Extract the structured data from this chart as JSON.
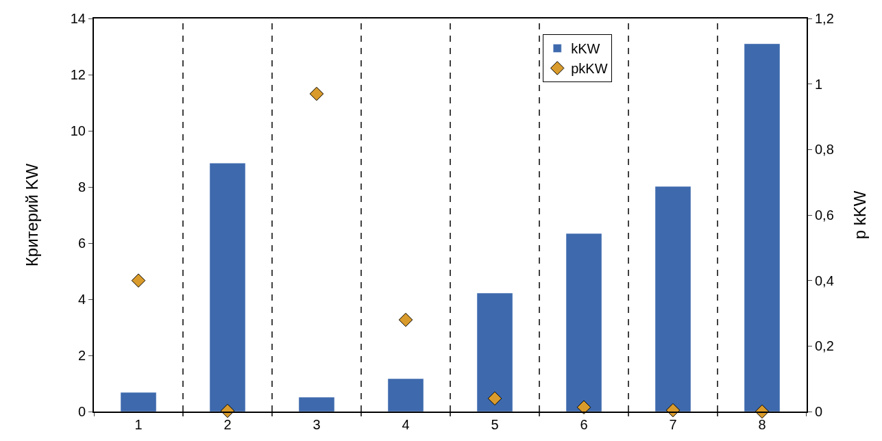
{
  "chart_data": {
    "type": "bar",
    "ylabel": "Критерий KW",
    "y2label": "p kKW",
    "categories": [
      "1",
      "2",
      "3",
      "4",
      "5",
      "6",
      "7",
      "8"
    ],
    "series": [
      {
        "name": "kKW",
        "color": "#3e69ad",
        "values": [
          0.68,
          8.85,
          0.51,
          1.17,
          4.22,
          6.34,
          8.02,
          13.1
        ]
      },
      {
        "name": "pkKW",
        "type": "scatter",
        "axis": "y2",
        "color": "#d99b2b",
        "marker": "diamond",
        "values": [
          0.4,
          0.002,
          0.97,
          0.28,
          0.04,
          0.013,
          0.004,
          0.0
        ]
      }
    ],
    "ylim": [
      0,
      14
    ],
    "yticks": [
      0,
      2,
      4,
      6,
      8,
      10,
      12,
      14
    ],
    "y2lim": [
      0,
      1.2
    ],
    "y2ticks": [
      0,
      {
        "value": 0.2,
        "label": "0,2"
      },
      {
        "value": 0.4,
        "label": "0,4"
      },
      {
        "value": 0.6,
        "label": "0,6"
      },
      {
        "value": 0.8,
        "label": "0,8"
      },
      1,
      {
        "value": 1.2,
        "label": "1,2"
      }
    ],
    "grid": "x",
    "legend": "top right"
  }
}
